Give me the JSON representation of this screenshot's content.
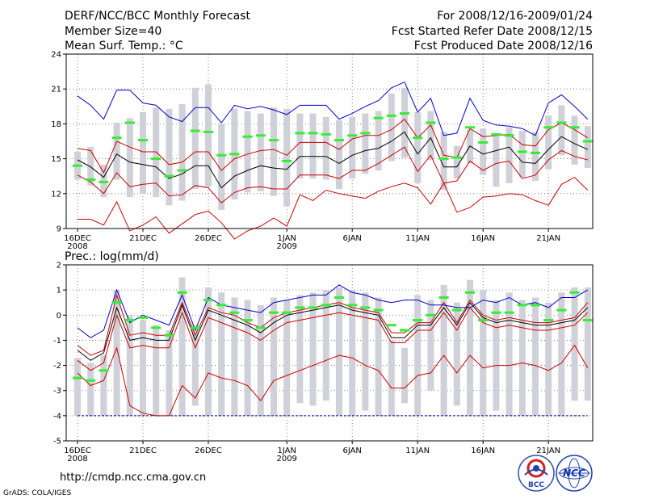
{
  "header": {
    "title": "DERF/NCC/BCC Monthly Forecast",
    "member_size": "Member Size=40",
    "variable": "Mean Surf. Temp.: °C",
    "forecast_period": "For 2008/12/16-2009/01/24",
    "fcst_started": "Fcst Started Refer Date 2008/12/15",
    "fcst_produced": "Fcst Produced Date 2008/12/16"
  },
  "footer": {
    "url": "http://cmdp.ncc.cma.gov.cn",
    "grads": "GrADS: COLA/IGES",
    "logo_bcc": "BCC",
    "logo_ncc": "NCC"
  },
  "colors": {
    "max_line": "#0000cc",
    "pct_line": "#cc0000",
    "mean_line": "#000000",
    "box": "#d0d0d8",
    "obs_marker": "#33ee33",
    "floor_line": "#0000aa"
  },
  "chart_data": [
    {
      "type": "line",
      "title": "Mean Surf. Temp.: °C",
      "ylim": [
        9,
        24
      ],
      "yticks": [
        9,
        12,
        15,
        18,
        21,
        24
      ],
      "x_tick_labels": [
        {
          "day": 0,
          "label": "16DEC",
          "sub": "2008"
        },
        {
          "day": 5,
          "label": "21DEC",
          "sub": ""
        },
        {
          "day": 10,
          "label": "26DEC",
          "sub": ""
        },
        {
          "day": 16,
          "label": "1JAN",
          "sub": "2009"
        },
        {
          "day": 21,
          "label": "6JAN",
          "sub": ""
        },
        {
          "day": 26,
          "label": "11JAN",
          "sub": ""
        },
        {
          "day": 31,
          "label": "16JAN",
          "sub": ""
        },
        {
          "day": 36,
          "label": "21JAN",
          "sub": ""
        }
      ],
      "max": [
        20.4,
        19.6,
        18.4,
        20.9,
        20.9,
        19.8,
        19.6,
        18.6,
        18.2,
        19.4,
        19.4,
        18.1,
        19.6,
        19.3,
        19.5,
        19.2,
        18.8,
        19.6,
        19.6,
        19.6,
        18.4,
        18.9,
        19.5,
        20.0,
        21.1,
        21.6,
        19.0,
        20.2,
        17.0,
        17.2,
        20.2,
        18.3,
        17.9,
        17.8,
        17.6,
        17.0,
        19.8,
        20.5,
        19.5,
        18.4
      ],
      "upper": [
        15.9,
        15.7,
        13.8,
        16.5,
        16.0,
        15.6,
        15.6,
        14.5,
        14.7,
        15.6,
        15.6,
        14.0,
        15.0,
        15.4,
        15.7,
        15.8,
        15.3,
        16.4,
        16.4,
        16.4,
        15.8,
        16.7,
        17.0,
        17.0,
        17.5,
        18.4,
        16.8,
        17.9,
        15.3,
        15.1,
        17.6,
        16.9,
        17.0,
        17.1,
        16.2,
        16.1,
        17.5,
        18.1,
        17.5,
        16.8
      ],
      "mean": [
        14.9,
        14.3,
        13.4,
        15.4,
        14.7,
        14.5,
        14.3,
        13.3,
        13.7,
        14.4,
        14.4,
        12.5,
        13.5,
        14.0,
        14.4,
        14.2,
        14.1,
        15.2,
        15.2,
        15.2,
        14.6,
        15.3,
        15.7,
        15.9,
        16.5,
        17.3,
        15.4,
        16.8,
        14.3,
        14.3,
        16.1,
        15.4,
        15.7,
        16.0,
        14.7,
        14.6,
        15.8,
        16.9,
        16.3,
        15.8
      ],
      "lower": [
        13.6,
        13.0,
        12.0,
        13.8,
        12.6,
        12.8,
        12.9,
        11.8,
        11.9,
        12.7,
        12.5,
        11.2,
        12.1,
        12.5,
        12.6,
        12.4,
        12.4,
        13.6,
        13.6,
        13.6,
        13.3,
        14.0,
        14.0,
        14.6,
        15.3,
        16.0,
        13.9,
        15.3,
        12.9,
        13.1,
        14.8,
        14.0,
        14.6,
        14.8,
        13.3,
        13.6,
        14.9,
        15.7,
        15.2,
        14.9
      ],
      "min": [
        9.8,
        9.8,
        9.3,
        11.3,
        8.8,
        9.3,
        10.0,
        8.6,
        9.4,
        10.2,
        10.5,
        9.5,
        8.1,
        8.8,
        9.2,
        9.9,
        9.2,
        11.9,
        11.4,
        12.3,
        12.0,
        11.8,
        11.6,
        12.2,
        12.6,
        12.9,
        12.5,
        11.1,
        12.9,
        10.4,
        10.8,
        11.7,
        11.8,
        12.0,
        11.9,
        11.4,
        11.0,
        12.8,
        13.4,
        12.3
      ],
      "box_low": [
        13.2,
        12.7,
        11.7,
        13.2,
        11.7,
        12.0,
        11.7,
        11.0,
        11.4,
        12.4,
        12.6,
        10.6,
        11.5,
        12.1,
        12.2,
        11.8,
        10.9,
        13.3,
        13.3,
        13.2,
        12.4,
        13.3,
        13.7,
        14.0,
        14.8,
        15.1,
        12.9,
        14.9,
        12.3,
        13.3,
        14.6,
        13.6,
        12.6,
        12.9,
        13.4,
        13.1,
        14.1,
        15.3,
        14.5,
        14.2
      ],
      "box_high": [
        15.6,
        16.0,
        14.5,
        18.1,
        18.5,
        19.0,
        19.4,
        19.3,
        19.7,
        21.1,
        21.4,
        18.0,
        19.3,
        19.1,
        18.9,
        19.4,
        19.3,
        18.9,
        18.9,
        18.6,
        18.3,
        18.6,
        18.9,
        19.1,
        20.6,
        21.1,
        19.0,
        19.1,
        17.3,
        16.1,
        17.5,
        17.6,
        17.2,
        17.7,
        17.4,
        17.3,
        18.7,
        19.6,
        18.7,
        17.8
      ],
      "obs": [
        14.4,
        13.2,
        13.0,
        16.8,
        18.1,
        16.6,
        15.0,
        13.5,
        14.0,
        17.4,
        17.3,
        15.3,
        15.4,
        16.9,
        17.0,
        16.6,
        14.8,
        17.2,
        17.2,
        17.1,
        16.6,
        17.0,
        17.2,
        18.5,
        18.7,
        18.9,
        16.8,
        18.1,
        15.0,
        15.1,
        17.7,
        16.4,
        17.1,
        17.0,
        15.6,
        15.5,
        17.7,
        18.1,
        17.7,
        16.5
      ]
    },
    {
      "type": "line",
      "title": "Prec.: log(mm/d)",
      "ylim": [
        -5,
        2
      ],
      "yticks": [
        -5,
        -4,
        -3,
        -2,
        -1,
        0,
        1,
        2
      ],
      "x_tick_labels": [
        {
          "day": 0,
          "label": "16DEC",
          "sub": "2008"
        },
        {
          "day": 5,
          "label": "21DEC",
          "sub": ""
        },
        {
          "day": 10,
          "label": "26DEC",
          "sub": ""
        },
        {
          "day": 16,
          "label": "1JAN",
          "sub": "2009"
        },
        {
          "day": 21,
          "label": "6JAN",
          "sub": ""
        },
        {
          "day": 26,
          "label": "11JAN",
          "sub": ""
        },
        {
          "day": 31,
          "label": "16JAN",
          "sub": ""
        },
        {
          "day": 36,
          "label": "21JAN",
          "sub": ""
        }
      ],
      "floor": -4,
      "max": [
        -0.5,
        -0.9,
        -0.6,
        1.0,
        -0.3,
        0.0,
        -0.2,
        -0.4,
        0.8,
        -0.6,
        0.7,
        0.4,
        0.3,
        0.2,
        0.1,
        0.5,
        0.6,
        0.7,
        0.8,
        0.8,
        1.2,
        0.9,
        0.8,
        0.6,
        0.5,
        0.6,
        0.6,
        0.4,
        0.4,
        0.3,
        0.3,
        0.6,
        0.5,
        0.7,
        0.4,
        0.5,
        0.3,
        0.7,
        0.7,
        1.0
      ],
      "upper": [
        -1.2,
        -1.6,
        -1.4,
        0.8,
        -0.8,
        -0.7,
        -0.8,
        -0.8,
        0.5,
        -0.8,
        0.3,
        0.1,
        0.0,
        -0.3,
        -0.5,
        -0.1,
        0.1,
        0.2,
        0.3,
        0.4,
        0.5,
        0.3,
        0.2,
        0.1,
        -0.7,
        -0.7,
        -0.3,
        -0.3,
        0.5,
        -0.3,
        0.6,
        0.0,
        -0.2,
        -0.1,
        -0.2,
        -0.3,
        -0.3,
        -0.2,
        -0.1,
        0.5
      ],
      "mean": [
        -1.4,
        -1.8,
        -1.5,
        0.3,
        -1.0,
        -0.9,
        -1.0,
        -1.0,
        0.4,
        -1.0,
        0.2,
        0.0,
        -0.2,
        -0.4,
        -0.7,
        -0.3,
        0.0,
        0.1,
        0.2,
        0.3,
        0.4,
        0.2,
        0.1,
        0.0,
        -0.9,
        -0.9,
        -0.4,
        -0.4,
        0.3,
        -0.4,
        0.5,
        -0.1,
        -0.3,
        -0.2,
        -0.3,
        -0.4,
        -0.4,
        -0.3,
        -0.2,
        0.3
      ],
      "lower": [
        -1.8,
        -2.2,
        -1.9,
        0.0,
        -1.3,
        -1.2,
        -1.3,
        -1.3,
        0.1,
        -1.3,
        -0.1,
        -0.3,
        -0.5,
        -0.7,
        -1.0,
        -0.6,
        -0.3,
        -0.2,
        -0.1,
        0.0,
        0.1,
        0.0,
        -0.1,
        -0.2,
        -1.1,
        -1.1,
        -0.6,
        -0.6,
        0.1,
        -0.6,
        0.3,
        -0.3,
        -0.5,
        -0.4,
        -0.5,
        -0.6,
        -0.6,
        -0.5,
        -0.4,
        0.1
      ],
      "min": [
        -2.3,
        -2.8,
        -2.6,
        -1.3,
        -3.6,
        -3.9,
        -4.0,
        -4.0,
        -2.8,
        -3.3,
        -2.3,
        -2.5,
        -2.6,
        -2.8,
        -3.4,
        -2.6,
        -2.4,
        -2.2,
        -2.0,
        -1.8,
        -1.6,
        -1.7,
        -2.0,
        -2.2,
        -2.9,
        -2.9,
        -2.4,
        -2.3,
        -1.6,
        -2.3,
        -1.6,
        -2.1,
        -2.0,
        -2.0,
        -1.9,
        -2.0,
        -2.2,
        -1.9,
        -1.2,
        -2.1
      ],
      "box_low": [
        -4.0,
        -4.0,
        -4.0,
        -4.0,
        -4.0,
        -4.0,
        -4.0,
        -4.0,
        -4.0,
        -3.6,
        -4.0,
        -4.0,
        -4.0,
        -4.0,
        -4.0,
        -4.0,
        -4.0,
        -3.5,
        -3.6,
        -3.4,
        -4.0,
        -4.0,
        -3.8,
        -4.0,
        -4.0,
        -3.5,
        -4.0,
        -3.0,
        -4.0,
        -3.6,
        -4.0,
        -4.0,
        -3.8,
        -4.0,
        -4.0,
        -4.0,
        -4.0,
        -4.0,
        -3.4,
        -3.4
      ],
      "box_high": [
        -1.7,
        -1.9,
        -1.6,
        1.0,
        0.0,
        -0.2,
        -0.4,
        -0.6,
        1.5,
        -0.4,
        1.1,
        0.9,
        0.7,
        0.6,
        0.4,
        0.7,
        0.6,
        0.8,
        0.9,
        1.0,
        1.1,
        1.0,
        0.9,
        0.7,
        -1.0,
        -1.3,
        0.8,
        0.6,
        1.2,
        0.5,
        1.4,
        1.0,
        0.6,
        0.9,
        0.6,
        0.7,
        0.5,
        0.9,
        1.1,
        1.1
      ],
      "obs": [
        -2.5,
        -2.6,
        -2.2,
        0.5,
        -0.2,
        -0.1,
        -0.5,
        -0.8,
        0.9,
        -0.5,
        0.6,
        0.4,
        0.1,
        -0.2,
        -0.5,
        0.1,
        0.1,
        0.3,
        0.3,
        0.4,
        0.7,
        0.4,
        0.3,
        0.2,
        -0.4,
        -0.6,
        -0.2,
        0.0,
        0.7,
        0.2,
        0.9,
        -0.2,
        0.1,
        0.1,
        0.4,
        0.4,
        -0.2,
        0.2,
        0.9,
        -0.2
      ]
    }
  ]
}
